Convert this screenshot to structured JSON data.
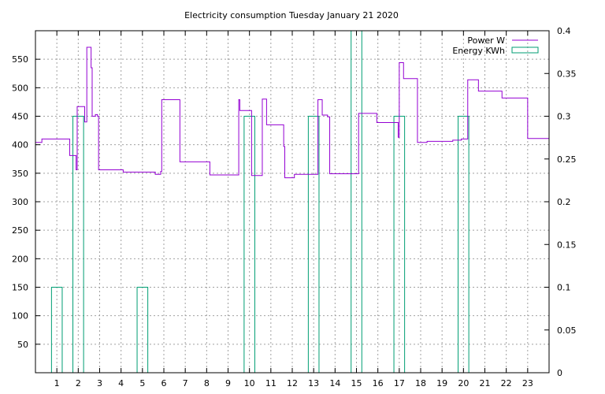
{
  "chart_data": {
    "type": "line",
    "title": "Electricity consumption Tuesday January 21 2020",
    "grid": true,
    "legend_position": "top-right",
    "x_axis": {
      "range": [
        0,
        24
      ],
      "ticks": [
        1,
        2,
        3,
        4,
        5,
        6,
        7,
        8,
        9,
        10,
        11,
        12,
        13,
        14,
        15,
        16,
        17,
        18,
        19,
        20,
        21,
        22,
        23
      ]
    },
    "y_left": {
      "range": [
        0,
        600
      ],
      "ticks": [
        50,
        100,
        150,
        200,
        250,
        300,
        350,
        400,
        450,
        500,
        550
      ]
    },
    "y_right": {
      "range": [
        0,
        0.4
      ],
      "ticks": [
        "0",
        "0.05",
        "0.1",
        "0.15",
        "0.2",
        "0.25",
        "0.3",
        "0.35",
        "0.4"
      ]
    },
    "series": [
      {
        "name": "Power W",
        "axis": "left",
        "style": "steps",
        "color": "#9400d3",
        "points": [
          [
            0.0,
            404
          ],
          [
            0.3,
            410
          ],
          [
            1.6,
            381
          ],
          [
            1.9,
            356
          ],
          [
            1.95,
            467
          ],
          [
            2.3,
            440
          ],
          [
            2.4,
            571
          ],
          [
            2.6,
            535
          ],
          [
            2.65,
            450
          ],
          [
            2.8,
            453
          ],
          [
            2.9,
            450
          ],
          [
            2.95,
            356
          ],
          [
            4.1,
            352
          ],
          [
            5.6,
            348
          ],
          [
            5.85,
            353
          ],
          [
            5.9,
            479
          ],
          [
            6.75,
            370
          ],
          [
            8.15,
            347
          ],
          [
            9.5,
            479
          ],
          [
            9.55,
            460
          ],
          [
            10.1,
            346
          ],
          [
            10.6,
            480
          ],
          [
            10.8,
            435
          ],
          [
            11.6,
            397
          ],
          [
            11.65,
            342
          ],
          [
            12.1,
            348
          ],
          [
            13.2,
            479
          ],
          [
            13.4,
            452
          ],
          [
            13.65,
            449
          ],
          [
            13.75,
            349
          ],
          [
            15.1,
            455
          ],
          [
            15.95,
            439
          ],
          [
            16.95,
            413
          ],
          [
            17.0,
            544
          ],
          [
            17.2,
            516
          ],
          [
            17.85,
            404
          ],
          [
            18.3,
            406
          ],
          [
            19.5,
            408
          ],
          [
            19.9,
            410
          ],
          [
            20.2,
            514
          ],
          [
            20.7,
            494
          ],
          [
            21.8,
            482
          ],
          [
            23.0,
            411
          ],
          [
            24.0,
            411
          ]
        ]
      },
      {
        "name": "Energy KWh",
        "axis": "right",
        "style": "boxes",
        "color": "#009e73",
        "boxes": [
          {
            "x": 1.0,
            "width": 0.5,
            "value": 0.1
          },
          {
            "x": 2.0,
            "width": 0.5,
            "value": 0.3
          },
          {
            "x": 5.0,
            "width": 0.5,
            "value": 0.1
          },
          {
            "x": 10.0,
            "width": 0.5,
            "value": 0.3
          },
          {
            "x": 13.0,
            "width": 0.5,
            "value": 0.3
          },
          {
            "x": 15.0,
            "width": 0.5,
            "value": 0.4
          },
          {
            "x": 17.0,
            "width": 0.5,
            "value": 0.3
          },
          {
            "x": 20.0,
            "width": 0.5,
            "value": 0.3
          }
        ]
      }
    ]
  }
}
